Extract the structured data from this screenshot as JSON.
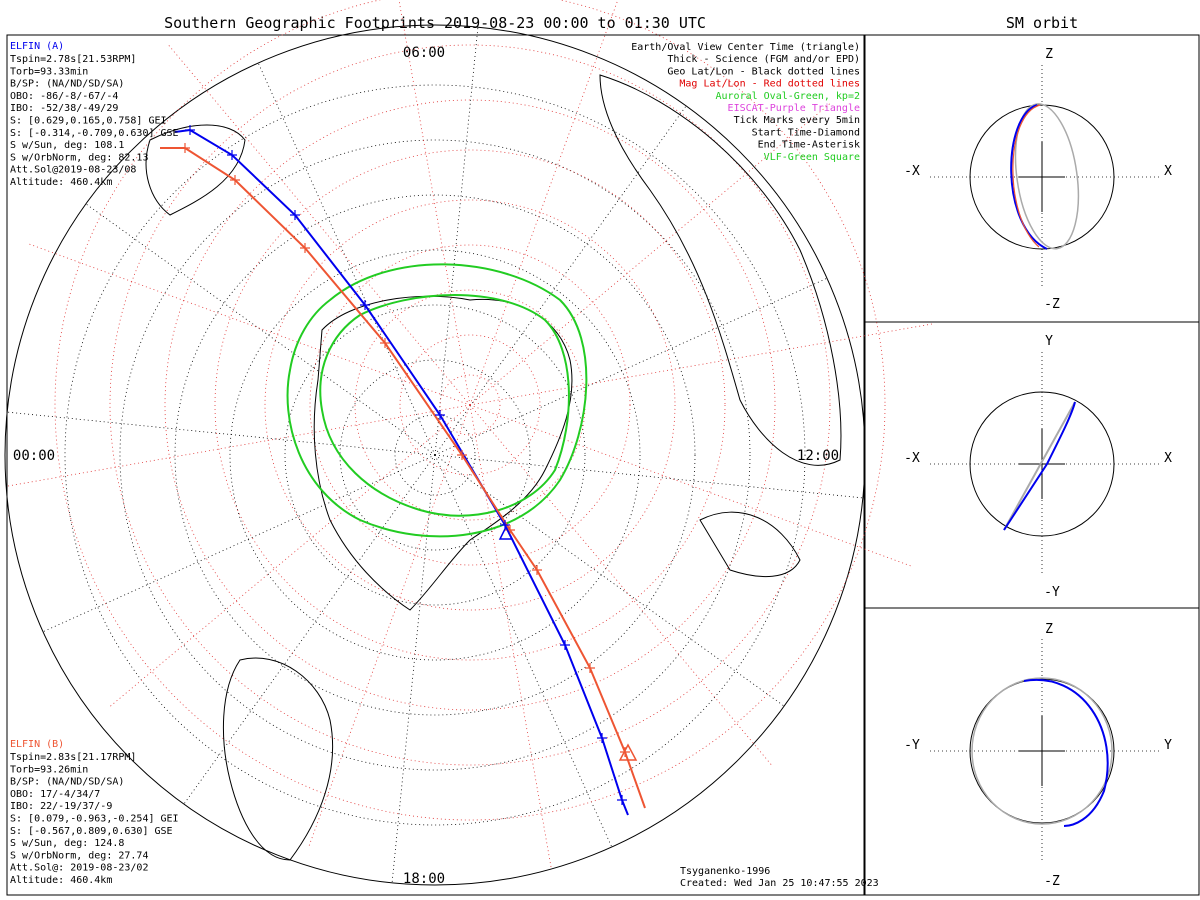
{
  "header": {
    "main_title": "Southern Geographic Footprints 2019-08-23 00:00 to 01:30 UTC",
    "orbit_title": "SM orbit"
  },
  "map": {
    "clock_labels": [
      "06:00",
      "12:00",
      "18:00",
      "00:00"
    ],
    "legend": [
      {
        "text": "Earth/Oval View Center Time (triangle)",
        "color": "#000000"
      },
      {
        "text": "Thick - Science (FGM and/or EPD)",
        "color": "#000000"
      },
      {
        "text": "Geo Lat/Lon - Black dotted lines",
        "color": "#000000"
      },
      {
        "text": "Mag Lat/Lon - Red dotted lines",
        "color": "#e00000"
      },
      {
        "text": "Auroral Oval-Green, kp=2",
        "color": "#22cc22"
      },
      {
        "text": "EISCAT-Purple Triangle",
        "color": "#dd44dd"
      },
      {
        "text": "Tick Marks every 5min",
        "color": "#000000"
      },
      {
        "text": "Start Time-Diamond",
        "color": "#000000"
      },
      {
        "text": "End Time-Asterisk",
        "color": "#000000"
      },
      {
        "text": "VLF-Green Square",
        "color": "#22cc22"
      }
    ],
    "elfin_a": {
      "name": "ELFIN (A)",
      "color": "#0000ee",
      "lines": [
        "Tspin=2.78s[21.53RPM]",
        "Torb=93.33min",
        "B/SP: (NA/ND/SD/SA)",
        "OBO: -86/-8/-67/-4",
        "IBO: -52/38/-49/29",
        "S: [0.629,0.165,0.758] GEI",
        "S: [-0.314,-0.709,0.630] GSE",
        "S w/Sun, deg: 108.1",
        "S w/OrbNorm, deg: 82.13",
        "Att.Sol@2019-08-23/08",
        "Altitude: 460.4km"
      ]
    },
    "elfin_b": {
      "name": "ELFIN (B)",
      "color": "#ee5533",
      "lines": [
        "Tspin=2.83s[21.17RPM]",
        "Torb=93.26min",
        "B/SP: (NA/ND/SD/SA)",
        "OBO: 17/-4/34/7",
        "IBO: 22/-19/37/-9",
        "S: [0.079,-0.963,-0.254] GEI",
        "S: [-0.567,0.809,0.630] GSE",
        "S w/Sun, deg: 124.8",
        "S w/OrbNorm, deg: 27.74",
        "Att.Sol@: 2019-08-23/02",
        "Altitude: 460.4km"
      ]
    },
    "credits": [
      "Tsyganenko-1996",
      "Created: Wed Jan 25 10:47:55 2023"
    ]
  },
  "orbit_panels": [
    {
      "h_left": "-X",
      "h_right": "X",
      "v_top": "Z",
      "v_bottom": "-Z"
    },
    {
      "h_left": "-X",
      "h_right": "X",
      "v_top": "Y",
      "v_bottom": "-Y"
    },
    {
      "h_left": "-Y",
      "h_right": "Y",
      "v_top": "Z",
      "v_bottom": "-Z"
    }
  ],
  "colors": {
    "geo_grid": "#000000",
    "mag_grid": "#e03030",
    "oval": "#22cc22",
    "track_a": "#0000ee",
    "track_b": "#ee5533",
    "orbit_gray": "#aaaaaa"
  }
}
